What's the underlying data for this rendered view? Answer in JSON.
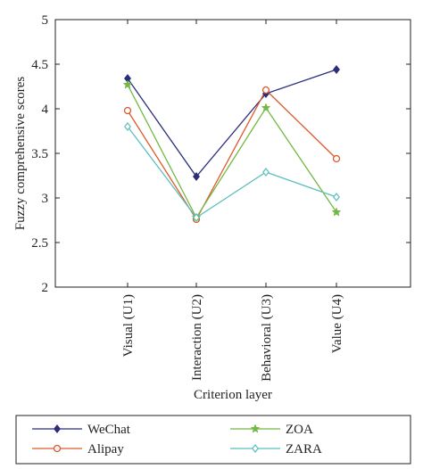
{
  "chart_data": {
    "type": "line",
    "categories": [
      "Visual (U1)",
      "Interaction (U2)",
      "Behavioral (U3)",
      "Value (U4)"
    ],
    "xlabel": "Criterion layer",
    "ylabel": "Fuzzy comprehensive scores",
    "ylim": [
      2,
      5
    ],
    "yticks": [
      "2",
      "2.5",
      "3",
      "3.5",
      "4",
      "4.5",
      "5"
    ],
    "grid": false,
    "legend_position": "bottom",
    "series": [
      {
        "name": "WeChat",
        "values": [
          4.34,
          3.24,
          4.17,
          4.44
        ],
        "color": "#2b2f7a",
        "marker": "diamond-filled"
      },
      {
        "name": "Alipay",
        "values": [
          3.98,
          2.76,
          4.21,
          3.44
        ],
        "color": "#e0572a",
        "marker": "circle-open"
      },
      {
        "name": "ZOA",
        "values": [
          4.27,
          2.78,
          4.01,
          2.84
        ],
        "color": "#72b844",
        "marker": "star"
      },
      {
        "name": "ZARA",
        "values": [
          3.8,
          2.78,
          3.29,
          3.01
        ],
        "color": "#5bbfbf",
        "marker": "diamond-open"
      }
    ]
  }
}
